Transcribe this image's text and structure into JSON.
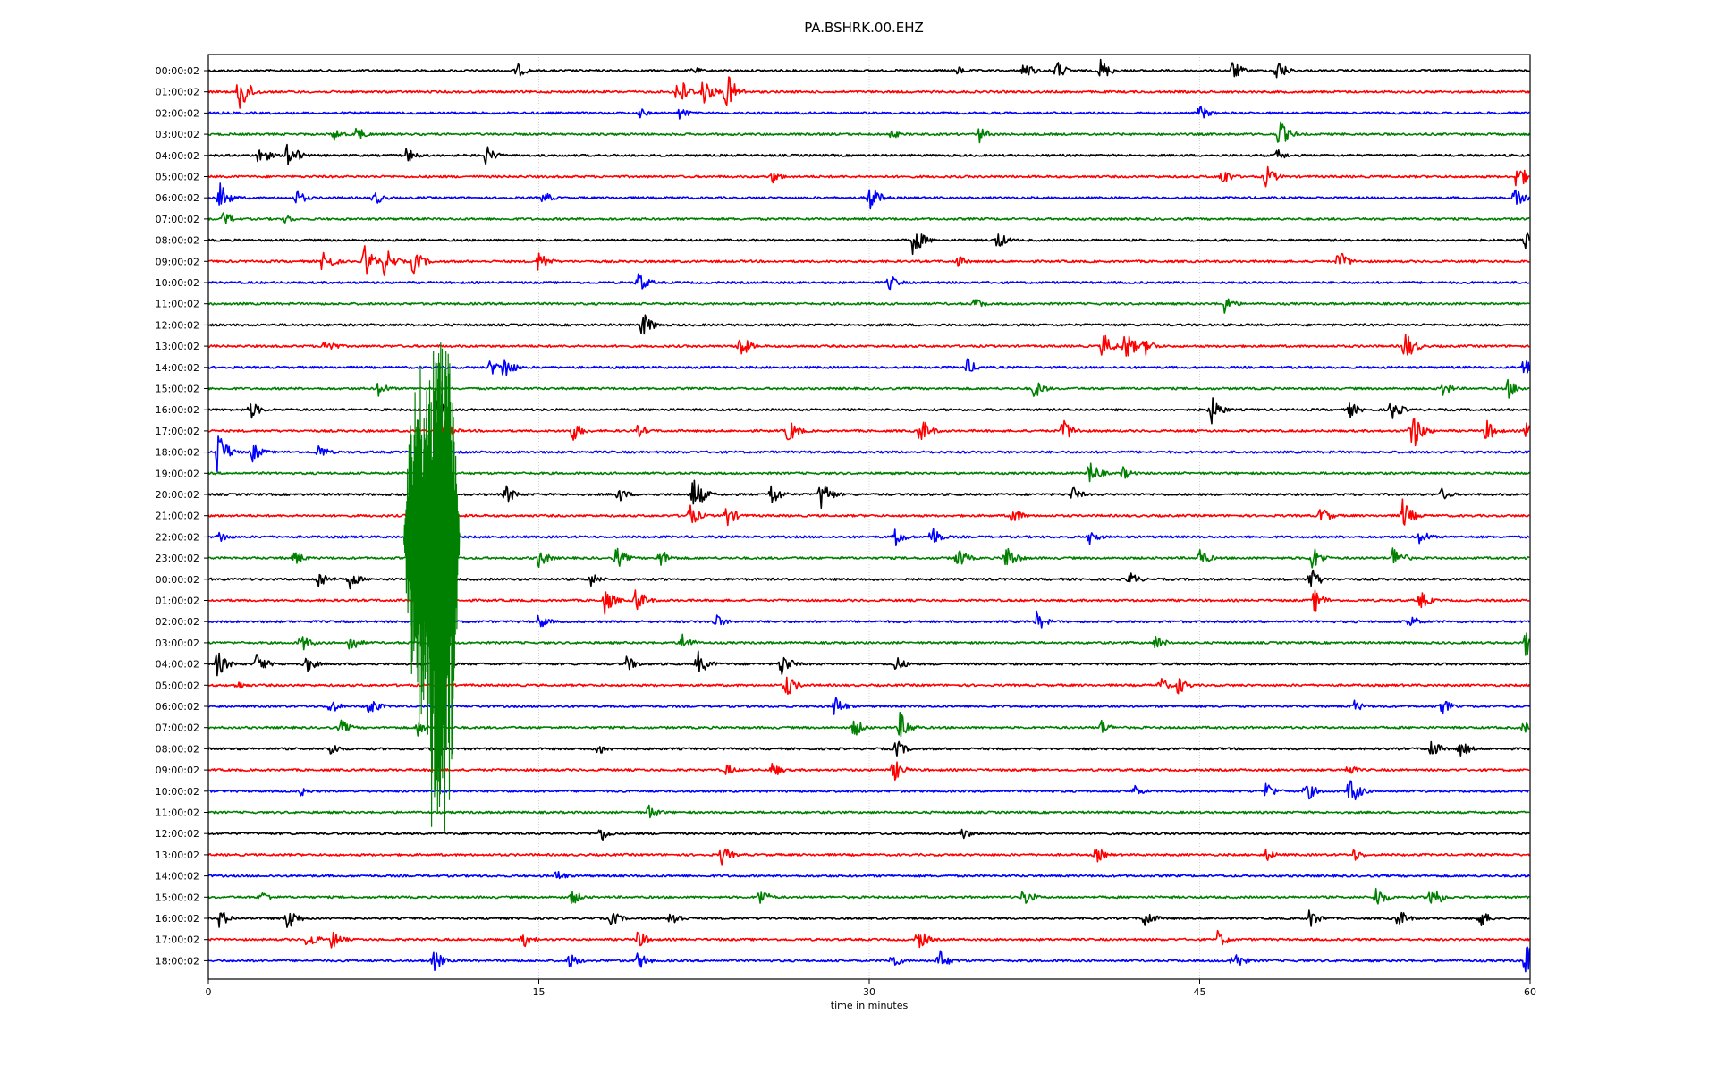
{
  "chart_data": {
    "type": "line",
    "title": "PA.BSHRK.00.EHZ",
    "xlabel": "time in minutes",
    "ylabel": "",
    "xlim": [
      0,
      60
    ],
    "x_ticks": [
      0,
      15,
      30,
      45,
      60
    ],
    "grid": "vertical dotted lines at 15, 30, 45",
    "colors": [
      "#000000",
      "#ff0000",
      "#0000ff",
      "#008000"
    ],
    "rows": [
      {
        "label": "00:00:02",
        "color": "#000000",
        "events": [
          {
            "t": 14,
            "amp": 9
          },
          {
            "t": 22,
            "amp": 5
          },
          {
            "t": 34,
            "amp": 6
          },
          {
            "t": 37,
            "amp": 12
          },
          {
            "t": 38.5,
            "amp": 12
          },
          {
            "t": 40.5,
            "amp": 14
          },
          {
            "t": 46.5,
            "amp": 12
          },
          {
            "t": 48.5,
            "amp": 14
          }
        ]
      },
      {
        "label": "01:00:02",
        "color": "#ff0000",
        "events": [
          {
            "t": 1.4,
            "amp": 28
          },
          {
            "t": 21.3,
            "amp": 22
          },
          {
            "t": 22.4,
            "amp": 20
          },
          {
            "t": 23.5,
            "amp": 25
          }
        ]
      },
      {
        "label": "02:00:02",
        "color": "#0000ff",
        "events": [
          {
            "t": 19.6,
            "amp": 6
          },
          {
            "t": 21.4,
            "amp": 8
          },
          {
            "t": 45,
            "amp": 10
          }
        ]
      },
      {
        "label": "03:00:02",
        "color": "#008000",
        "events": [
          {
            "t": 5.7,
            "amp": 8
          },
          {
            "t": 6.7,
            "amp": 10
          },
          {
            "t": 31,
            "amp": 6
          },
          {
            "t": 35,
            "amp": 10
          },
          {
            "t": 48.6,
            "amp": 18
          }
        ]
      },
      {
        "label": "04:00:02",
        "color": "#000000",
        "events": [
          {
            "t": 2.3,
            "amp": 14
          },
          {
            "t": 3.6,
            "amp": 20
          },
          {
            "t": 9,
            "amp": 10
          },
          {
            "t": 12.6,
            "amp": 12
          },
          {
            "t": 48.5,
            "amp": 8
          }
        ]
      },
      {
        "label": "05:00:02",
        "color": "#ff0000",
        "events": [
          {
            "t": 25.6,
            "amp": 8
          },
          {
            "t": 46,
            "amp": 12
          },
          {
            "t": 48,
            "amp": 14
          },
          {
            "t": 59.4,
            "amp": 18
          }
        ]
      },
      {
        "label": "06:00:02",
        "color": "#0000ff",
        "events": [
          {
            "t": 0.5,
            "amp": 18
          },
          {
            "t": 4,
            "amp": 10
          },
          {
            "t": 7.5,
            "amp": 10
          },
          {
            "t": 15.2,
            "amp": 8
          },
          {
            "t": 30,
            "amp": 18
          },
          {
            "t": 59.3,
            "amp": 12
          }
        ]
      },
      {
        "label": "07:00:02",
        "color": "#008000",
        "events": [
          {
            "t": 0.7,
            "amp": 10
          },
          {
            "t": 3.5,
            "amp": 6
          }
        ]
      },
      {
        "label": "08:00:02",
        "color": "#000000",
        "events": [
          {
            "t": 32,
            "amp": 20
          },
          {
            "t": 35.8,
            "amp": 12
          },
          {
            "t": 59.8,
            "amp": 10
          }
        ]
      },
      {
        "label": "09:00:02",
        "color": "#ff0000",
        "events": [
          {
            "t": 5.2,
            "amp": 16
          },
          {
            "t": 7.1,
            "amp": 20
          },
          {
            "t": 8,
            "amp": 18
          },
          {
            "t": 9.3,
            "amp": 16
          },
          {
            "t": 15,
            "amp": 14
          },
          {
            "t": 34,
            "amp": 8
          },
          {
            "t": 51.3,
            "amp": 14
          }
        ]
      },
      {
        "label": "10:00:02",
        "color": "#0000ff",
        "events": [
          {
            "t": 19.5,
            "amp": 14
          },
          {
            "t": 30.9,
            "amp": 10
          }
        ]
      },
      {
        "label": "11:00:02",
        "color": "#008000",
        "events": [
          {
            "t": 34.8,
            "amp": 8
          },
          {
            "t": 46.1,
            "amp": 12
          }
        ]
      },
      {
        "label": "12:00:02",
        "color": "#000000",
        "events": [
          {
            "t": 19.7,
            "amp": 16
          }
        ]
      },
      {
        "label": "13:00:02",
        "color": "#ff0000",
        "events": [
          {
            "t": 5.3,
            "amp": 12
          },
          {
            "t": 24.1,
            "amp": 16
          },
          {
            "t": 40.6,
            "amp": 16
          },
          {
            "t": 41.6,
            "amp": 20
          },
          {
            "t": 42.5,
            "amp": 12
          },
          {
            "t": 54.3,
            "amp": 20
          }
        ]
      },
      {
        "label": "14:00:02",
        "color": "#0000ff",
        "events": [
          {
            "t": 12.8,
            "amp": 10
          },
          {
            "t": 13.4,
            "amp": 16
          },
          {
            "t": 34.4,
            "amp": 12
          },
          {
            "t": 59.7,
            "amp": 14
          }
        ]
      },
      {
        "label": "15:00:02",
        "color": "#008000",
        "events": [
          {
            "t": 7.7,
            "amp": 10
          },
          {
            "t": 37.5,
            "amp": 12
          },
          {
            "t": 56,
            "amp": 10
          },
          {
            "t": 59,
            "amp": 12
          }
        ]
      },
      {
        "label": "16:00:02",
        "color": "#000000",
        "events": [
          {
            "t": 1.9,
            "amp": 12
          },
          {
            "t": 10.4,
            "amp": 12
          },
          {
            "t": 45.5,
            "amp": 18
          },
          {
            "t": 51.8,
            "amp": 10
          },
          {
            "t": 53.7,
            "amp": 14
          }
        ]
      },
      {
        "label": "17:00:02",
        "color": "#ff0000",
        "events": [
          {
            "t": 10.5,
            "amp": 20
          },
          {
            "t": 16.5,
            "amp": 14
          },
          {
            "t": 19.5,
            "amp": 8
          },
          {
            "t": 26.3,
            "amp": 16
          },
          {
            "t": 32.3,
            "amp": 18
          },
          {
            "t": 38.8,
            "amp": 16
          },
          {
            "t": 54.6,
            "amp": 28
          },
          {
            "t": 58,
            "amp": 14
          },
          {
            "t": 59.8,
            "amp": 10
          }
        ]
      },
      {
        "label": "18:00:02",
        "color": "#0000ff",
        "events": [
          {
            "t": 0.4,
            "amp": 28
          },
          {
            "t": 2,
            "amp": 12
          },
          {
            "t": 5,
            "amp": 10
          }
        ]
      },
      {
        "label": "19:00:02",
        "color": "#008000",
        "events": [
          {
            "t": 40,
            "amp": 16
          },
          {
            "t": 41.5,
            "amp": 8
          }
        ]
      },
      {
        "label": "20:00:02",
        "color": "#000000",
        "events": [
          {
            "t": 13.5,
            "amp": 12
          },
          {
            "t": 18.6,
            "amp": 10
          },
          {
            "t": 22,
            "amp": 24
          },
          {
            "t": 25.5,
            "amp": 16
          },
          {
            "t": 27.8,
            "amp": 20
          },
          {
            "t": 39.2,
            "amp": 10
          },
          {
            "t": 56,
            "amp": 8
          }
        ]
      },
      {
        "label": "21:00:02",
        "color": "#ff0000",
        "events": [
          {
            "t": 21.8,
            "amp": 16
          },
          {
            "t": 23.5,
            "amp": 14
          },
          {
            "t": 36.5,
            "amp": 12
          },
          {
            "t": 50.5,
            "amp": 12
          },
          {
            "t": 54.2,
            "amp": 20
          }
        ]
      },
      {
        "label": "22:00:02",
        "color": "#0000ff",
        "events": [
          {
            "t": 0.5,
            "amp": 8
          },
          {
            "t": 31.2,
            "amp": 12
          },
          {
            "t": 32.8,
            "amp": 14
          },
          {
            "t": 40,
            "amp": 10
          },
          {
            "t": 55,
            "amp": 10
          }
        ]
      },
      {
        "label": "23:00:02",
        "color": "#008000",
        "events": [
          {
            "t": 3.9,
            "amp": 10
          },
          {
            "t": 15,
            "amp": 12
          },
          {
            "t": 18.5,
            "amp": 14
          },
          {
            "t": 20.5,
            "amp": 12
          },
          {
            "t": 34,
            "amp": 14
          },
          {
            "t": 36.2,
            "amp": 18
          },
          {
            "t": 45,
            "amp": 12
          },
          {
            "t": 50.1,
            "amp": 16
          },
          {
            "t": 53.8,
            "amp": 16
          }
        ]
      },
      {
        "label": "00:00:02",
        "color": "#000000",
        "events": [
          {
            "t": 5,
            "amp": 12
          },
          {
            "t": 6.4,
            "amp": 12
          },
          {
            "t": 17.3,
            "amp": 10
          },
          {
            "t": 41.8,
            "amp": 10
          },
          {
            "t": 50,
            "amp": 16
          }
        ]
      },
      {
        "label": "01:00:02",
        "color": "#ff0000",
        "events": [
          {
            "t": 18,
            "amp": 16
          },
          {
            "t": 19.4,
            "amp": 16
          },
          {
            "t": 50.2,
            "amp": 14
          },
          {
            "t": 55,
            "amp": 12
          }
        ]
      },
      {
        "label": "02:00:02",
        "color": "#0000ff",
        "events": [
          {
            "t": 15,
            "amp": 10
          },
          {
            "t": 23,
            "amp": 10
          },
          {
            "t": 37.6,
            "amp": 12
          },
          {
            "t": 54.5,
            "amp": 10
          }
        ]
      },
      {
        "label": "03:00:02",
        "color": "#008000",
        "events": [
          {
            "t": 4.2,
            "amp": 12
          },
          {
            "t": 6.4,
            "amp": 12
          },
          {
            "t": 21.5,
            "amp": 12
          },
          {
            "t": 43,
            "amp": 10
          },
          {
            "t": 59.8,
            "amp": 16
          }
        ]
      },
      {
        "label": "04:00:02",
        "color": "#000000",
        "events": [
          {
            "t": 0.4,
            "amp": 16
          },
          {
            "t": 2.2,
            "amp": 14
          },
          {
            "t": 4.4,
            "amp": 12
          },
          {
            "t": 19,
            "amp": 10
          },
          {
            "t": 22.2,
            "amp": 16
          },
          {
            "t": 26,
            "amp": 16
          },
          {
            "t": 31.2,
            "amp": 10
          }
        ]
      },
      {
        "label": "05:00:02",
        "color": "#ff0000",
        "events": [
          {
            "t": 1.3,
            "amp": 6
          },
          {
            "t": 26.2,
            "amp": 16
          },
          {
            "t": 43.2,
            "amp": 10
          },
          {
            "t": 44,
            "amp": 12
          }
        ]
      },
      {
        "label": "06:00:02",
        "color": "#0000ff",
        "events": [
          {
            "t": 5.5,
            "amp": 10
          },
          {
            "t": 7.3,
            "amp": 12
          },
          {
            "t": 28.4,
            "amp": 14
          },
          {
            "t": 52,
            "amp": 8
          },
          {
            "t": 56,
            "amp": 10
          }
        ]
      },
      {
        "label": "07:00:02",
        "color": "#008000",
        "events": [
          {
            "t": 6,
            "amp": 10
          },
          {
            "t": 9.5,
            "amp": 10
          },
          {
            "t": 29.3,
            "amp": 12
          },
          {
            "t": 31.4,
            "amp": 18
          },
          {
            "t": 40.5,
            "amp": 10
          },
          {
            "t": 59.7,
            "amp": 8
          }
        ]
      },
      {
        "label": "08:00:02",
        "color": "#000000",
        "events": [
          {
            "t": 5.5,
            "amp": 10
          },
          {
            "t": 17.7,
            "amp": 8
          },
          {
            "t": 31.2,
            "amp": 12
          },
          {
            "t": 55.5,
            "amp": 12
          },
          {
            "t": 56.8,
            "amp": 12
          }
        ]
      },
      {
        "label": "09:00:02",
        "color": "#ff0000",
        "events": [
          {
            "t": 23.5,
            "amp": 8
          },
          {
            "t": 25.6,
            "amp": 10
          },
          {
            "t": 31.1,
            "amp": 14
          },
          {
            "t": 51.7,
            "amp": 8
          }
        ]
      },
      {
        "label": "10:00:02",
        "color": "#0000ff",
        "events": [
          {
            "t": 4.2,
            "amp": 6
          },
          {
            "t": 42,
            "amp": 8
          },
          {
            "t": 48,
            "amp": 12
          },
          {
            "t": 49.8,
            "amp": 14
          },
          {
            "t": 51.8,
            "amp": 20
          }
        ]
      },
      {
        "label": "11:00:02",
        "color": "#008000",
        "events": [
          {
            "t": 20,
            "amp": 10
          }
        ]
      },
      {
        "label": "12:00:02",
        "color": "#000000",
        "events": [
          {
            "t": 17.8,
            "amp": 10
          },
          {
            "t": 34.2,
            "amp": 8
          }
        ]
      },
      {
        "label": "13:00:02",
        "color": "#ff0000",
        "events": [
          {
            "t": 23.3,
            "amp": 12
          },
          {
            "t": 40.3,
            "amp": 10
          },
          {
            "t": 48,
            "amp": 8
          },
          {
            "t": 52,
            "amp": 8
          }
        ]
      },
      {
        "label": "14:00:02",
        "color": "#0000ff",
        "events": [
          {
            "t": 15.8,
            "amp": 8
          }
        ]
      },
      {
        "label": "15:00:02",
        "color": "#008000",
        "events": [
          {
            "t": 2.4,
            "amp": 8
          },
          {
            "t": 16.5,
            "amp": 10
          },
          {
            "t": 25,
            "amp": 12
          },
          {
            "t": 37,
            "amp": 12
          },
          {
            "t": 53,
            "amp": 14
          },
          {
            "t": 55.5,
            "amp": 18
          }
        ]
      },
      {
        "label": "16:00:02",
        "color": "#000000",
        "events": [
          {
            "t": 0.5,
            "amp": 12
          },
          {
            "t": 3.6,
            "amp": 16
          },
          {
            "t": 18.3,
            "amp": 10
          },
          {
            "t": 21,
            "amp": 12
          },
          {
            "t": 42.5,
            "amp": 12
          },
          {
            "t": 50,
            "amp": 12
          },
          {
            "t": 54,
            "amp": 12
          },
          {
            "t": 57.7,
            "amp": 12
          }
        ]
      },
      {
        "label": "17:00:02",
        "color": "#ff0000",
        "events": [
          {
            "t": 4.5,
            "amp": 12
          },
          {
            "t": 5.6,
            "amp": 12
          },
          {
            "t": 14.3,
            "amp": 10
          },
          {
            "t": 19.5,
            "amp": 12
          },
          {
            "t": 32.2,
            "amp": 14
          },
          {
            "t": 45.8,
            "amp": 12
          }
        ]
      },
      {
        "label": "18:00:02",
        "color": "#0000ff",
        "events": [
          {
            "t": 10.2,
            "amp": 14
          },
          {
            "t": 16.4,
            "amp": 10
          },
          {
            "t": 19.5,
            "amp": 12
          },
          {
            "t": 31,
            "amp": 10
          },
          {
            "t": 33.1,
            "amp": 16
          },
          {
            "t": 46.5,
            "amp": 14
          },
          {
            "t": 59.8,
            "amp": 24
          }
        ]
      }
    ],
    "large_events": [
      {
        "row": 22,
        "t": 10.3,
        "amp_up": 240,
        "amp_down": 360,
        "color": "#008000"
      },
      {
        "row": 22,
        "t": 9.6,
        "amp_up": 200,
        "amp_down": 240,
        "color": "#008000"
      },
      {
        "row": 22,
        "t": 10.8,
        "amp_up": 260,
        "amp_down": 380,
        "color": "#008000"
      }
    ]
  }
}
